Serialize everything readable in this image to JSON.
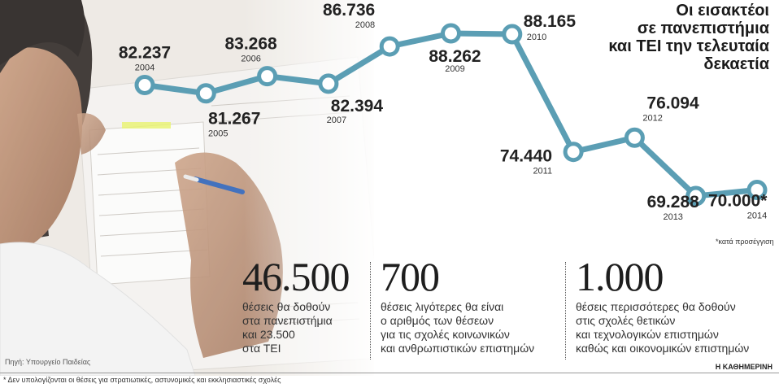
{
  "title_lines": [
    "Οι εισακτέοι",
    "σε πανεπιστήμια",
    "και ΤΕΙ την τελευταία",
    "δεκαετία"
  ],
  "approx_note": "*κατά προσέγγιση",
  "chart_data": {
    "type": "line",
    "title": "Οι εισακτέοι σε πανεπιστήμια και ΤΕΙ την τελευταία δεκαετία",
    "x": [
      "2004",
      "2005",
      "2006",
      "2007",
      "2008",
      "2009",
      "2010",
      "2011",
      "2012",
      "2013",
      "2014"
    ],
    "values": [
      82237,
      81267,
      83268,
      82394,
      86736,
      88262,
      88165,
      74440,
      76094,
      69288,
      70000
    ],
    "value_labels": [
      "82.237",
      "81.267",
      "83.268",
      "82.394",
      "86.736",
      "88.262",
      "88.165",
      "74.440",
      "76.094",
      "69.288",
      "70.000*"
    ],
    "xlabel": "",
    "ylabel": "",
    "grid": false,
    "line_color": "#5b9eb4"
  },
  "stats": [
    {
      "value": "46.500",
      "lines": [
        "θέσεις θα δοθούν",
        "στα πανεπιστήμια",
        "και 23.500",
        "στα ΤΕΙ"
      ]
    },
    {
      "value": "700",
      "lines": [
        "θέσεις λιγότερες θα είναι",
        "ο αριθμός των θέσεων",
        "για τις σχολές κοινωνικών",
        "και ανθρωπιστικών επιστημών"
      ]
    },
    {
      "value": "1.000",
      "lines": [
        "θέσεις περισσότερες θα δοθούν",
        "στις σχολές θετικών",
        "και τεχνολογικών επιστημών",
        "καθώς και οικονομικών επιστημών"
      ]
    }
  ],
  "source": "Πηγή: Υπουργείο Παιδείας",
  "brand": "Η ΚΑΘΗΜΕΡΙΝΗ",
  "footnote": "* Δεν υπολογίζονται οι θέσεις για στρατιωτικές, αστυνομικές και εκκλησιαστικές σχολές"
}
